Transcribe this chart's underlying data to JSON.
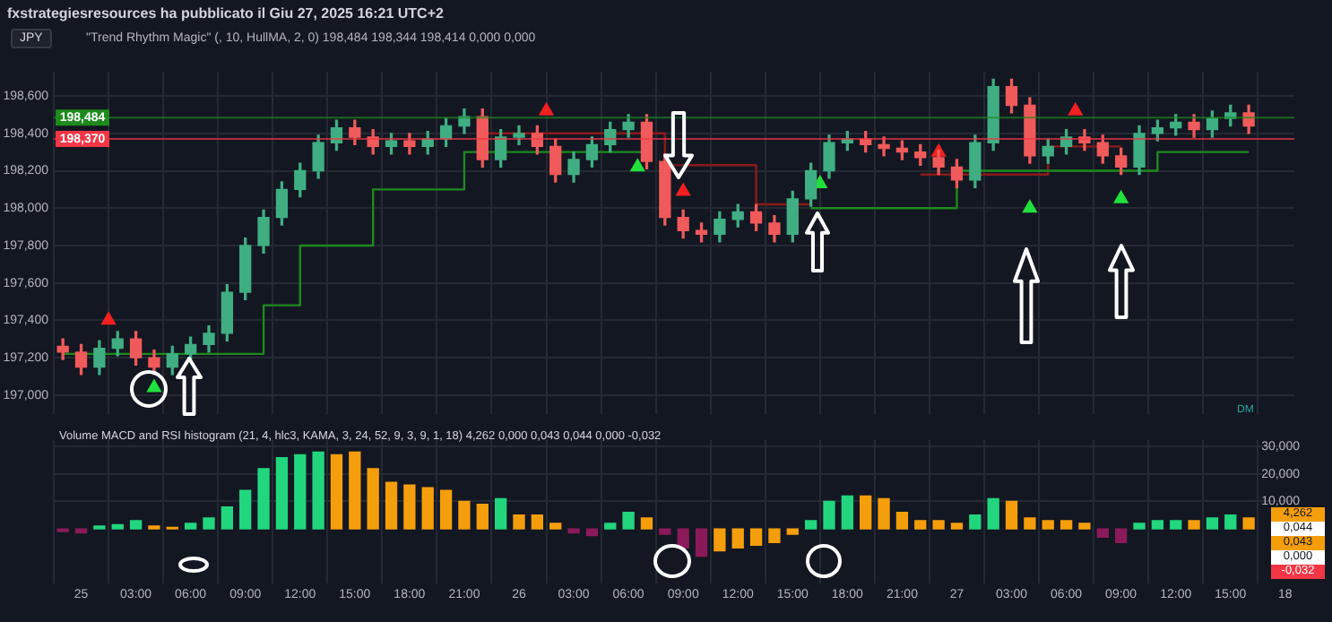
{
  "chart_data": [
    {
      "type": "candlestick",
      "title": "\"Trend Rhythm Magic\" (, 10, HullMA, 2, 0)  198,484  198,344  198,414  0,000  0,000",
      "x": [
        "2025-06-24T23:00",
        "2025-06-25T00:00",
        "2025-06-25T01:00",
        "2025-06-25T02:00",
        "2025-06-25T03:00",
        "2025-06-25T04:00",
        "2025-06-25T05:00",
        "2025-06-25T06:00",
        "2025-06-25T07:00",
        "2025-06-25T08:00",
        "2025-06-25T09:00",
        "2025-06-25T10:00",
        "2025-06-25T11:00",
        "2025-06-25T12:00",
        "2025-06-25T13:00",
        "2025-06-25T14:00",
        "2025-06-25T15:00",
        "2025-06-25T16:00",
        "2025-06-25T17:00",
        "2025-06-25T18:00",
        "2025-06-25T19:00",
        "2025-06-25T20:00",
        "2025-06-25T21:00",
        "2025-06-25T22:00",
        "2025-06-25T23:00",
        "2025-06-26T00:00",
        "2025-06-26T01:00",
        "2025-06-26T02:00",
        "2025-06-26T03:00",
        "2025-06-26T04:00",
        "2025-06-26T05:00",
        "2025-06-26T06:00",
        "2025-06-26T07:00",
        "2025-06-26T08:00",
        "2025-06-26T09:00",
        "2025-06-26T10:00",
        "2025-06-26T11:00",
        "2025-06-26T12:00",
        "2025-06-26T13:00",
        "2025-06-26T14:00",
        "2025-06-26T15:00",
        "2025-06-26T16:00",
        "2025-06-26T17:00",
        "2025-06-26T18:00",
        "2025-06-26T19:00",
        "2025-06-26T20:00",
        "2025-06-26T21:00",
        "2025-06-26T22:00",
        "2025-06-26T23:00",
        "2025-06-27T00:00",
        "2025-06-27T01:00",
        "2025-06-27T02:00",
        "2025-06-27T03:00",
        "2025-06-27T04:00",
        "2025-06-27T05:00",
        "2025-06-27T06:00",
        "2025-06-27T07:00",
        "2025-06-27T08:00",
        "2025-06-27T09:00",
        "2025-06-27T10:00",
        "2025-06-27T11:00",
        "2025-06-27T12:00",
        "2025-06-27T13:00",
        "2025-06-27T14:00",
        "2025-06-27T15:00",
        "2025-06-27T16:00"
      ],
      "ohlc": [
        [
          197.26,
          197.3,
          197.19,
          197.23
        ],
        [
          197.23,
          197.27,
          197.11,
          197.15
        ],
        [
          197.15,
          197.29,
          197.11,
          197.25
        ],
        [
          197.25,
          197.34,
          197.21,
          197.3
        ],
        [
          197.3,
          197.34,
          197.16,
          197.2
        ],
        [
          197.2,
          197.24,
          197.11,
          197.15
        ],
        [
          197.15,
          197.26,
          197.11,
          197.22
        ],
        [
          197.22,
          197.31,
          197.18,
          197.27
        ],
        [
          197.27,
          197.37,
          197.23,
          197.33
        ],
        [
          197.33,
          197.59,
          197.29,
          197.55
        ],
        [
          197.55,
          197.84,
          197.51,
          197.8
        ],
        [
          197.8,
          197.99,
          197.76,
          197.95
        ],
        [
          197.95,
          198.14,
          197.91,
          198.1
        ],
        [
          198.1,
          198.24,
          198.06,
          198.2
        ],
        [
          198.2,
          198.39,
          198.16,
          198.35
        ],
        [
          198.35,
          198.47,
          198.31,
          198.43
        ],
        [
          198.43,
          198.47,
          198.34,
          198.38
        ],
        [
          198.38,
          198.42,
          198.29,
          198.33
        ],
        [
          198.33,
          198.4,
          198.29,
          198.36
        ],
        [
          198.36,
          198.4,
          198.29,
          198.33
        ],
        [
          198.33,
          198.41,
          198.29,
          198.37
        ],
        [
          198.37,
          198.48,
          198.33,
          198.44
        ],
        [
          198.44,
          198.53,
          198.4,
          198.49
        ],
        [
          198.49,
          198.53,
          198.22,
          198.26
        ],
        [
          198.26,
          198.42,
          198.22,
          198.38
        ],
        [
          198.38,
          198.44,
          198.34,
          198.4
        ],
        [
          198.4,
          198.44,
          198.29,
          198.33
        ],
        [
          198.33,
          198.37,
          198.14,
          198.18
        ],
        [
          198.18,
          198.3,
          198.14,
          198.26
        ],
        [
          198.26,
          198.38,
          198.22,
          198.34
        ],
        [
          198.34,
          198.46,
          198.3,
          198.42
        ],
        [
          198.42,
          198.5,
          198.38,
          198.46
        ],
        [
          198.46,
          198.5,
          198.21,
          198.25
        ],
        [
          198.25,
          198.29,
          197.91,
          197.95
        ],
        [
          197.95,
          197.99,
          197.84,
          197.88
        ],
        [
          197.88,
          197.92,
          197.82,
          197.86
        ],
        [
          197.86,
          197.98,
          197.82,
          197.94
        ],
        [
          197.94,
          198.02,
          197.9,
          197.98
        ],
        [
          197.98,
          198.02,
          197.88,
          197.92
        ],
        [
          197.92,
          197.96,
          197.82,
          197.86
        ],
        [
          197.86,
          198.09,
          197.82,
          198.05
        ],
        [
          198.05,
          198.24,
          198.01,
          198.2
        ],
        [
          198.2,
          198.39,
          198.16,
          198.35
        ],
        [
          198.35,
          198.41,
          198.31,
          198.37
        ],
        [
          198.37,
          198.41,
          198.3,
          198.34
        ],
        [
          198.34,
          198.38,
          198.28,
          198.32
        ],
        [
          198.32,
          198.36,
          198.26,
          198.3
        ],
        [
          198.3,
          198.34,
          198.23,
          198.27
        ],
        [
          198.27,
          198.31,
          198.18,
          198.22
        ],
        [
          198.22,
          198.26,
          198.11,
          198.15
        ],
        [
          198.15,
          198.39,
          198.11,
          198.35
        ],
        [
          198.35,
          198.69,
          198.31,
          198.65
        ],
        [
          198.65,
          198.69,
          198.51,
          198.55
        ],
        [
          198.55,
          198.59,
          198.24,
          198.28
        ],
        [
          198.28,
          198.37,
          198.24,
          198.33
        ],
        [
          198.33,
          198.42,
          198.29,
          198.38
        ],
        [
          198.38,
          198.42,
          198.31,
          198.35
        ],
        [
          198.35,
          198.39,
          198.24,
          198.28
        ],
        [
          198.28,
          198.32,
          198.18,
          198.22
        ],
        [
          198.22,
          198.44,
          198.18,
          198.4
        ],
        [
          198.4,
          198.47,
          198.36,
          198.43
        ],
        [
          198.43,
          198.5,
          198.39,
          198.46
        ],
        [
          198.46,
          198.5,
          198.38,
          198.42
        ],
        [
          198.42,
          198.52,
          198.38,
          198.48
        ],
        [
          198.48,
          198.55,
          198.44,
          198.51
        ],
        [
          198.51,
          198.55,
          198.4,
          198.44
        ]
      ],
      "colors": [
        "#f05a5a",
        "#f05a5a",
        "#3fae82",
        "#3fae82",
        "#f05a5a",
        "#f05a5a",
        "#3fae82",
        "#3fae82",
        "#3fae82",
        "#3fae82",
        "#3fae82",
        "#3fae82",
        "#3fae82",
        "#3fae82",
        "#3fae82",
        "#3fae82",
        "#f05a5a",
        "#f05a5a",
        "#3fae82",
        "#f05a5a",
        "#3fae82",
        "#3fae82",
        "#3fae82",
        "#f05a5a",
        "#3fae82",
        "#3fae82",
        "#f05a5a",
        "#f05a5a",
        "#3fae82",
        "#3fae82",
        "#3fae82",
        "#3fae82",
        "#f05a5a",
        "#f05a5a",
        "#f05a5a",
        "#f05a5a",
        "#3fae82",
        "#3fae82",
        "#f05a5a",
        "#f05a5a",
        "#3fae82",
        "#3fae82",
        "#3fae82",
        "#3fae82",
        "#f05a5a",
        "#f05a5a",
        "#f05a5a",
        "#f05a5a",
        "#f05a5a",
        "#f05a5a",
        "#3fae82",
        "#3fae82",
        "#f05a5a",
        "#f05a5a",
        "#3fae82",
        "#3fae82",
        "#f05a5a",
        "#f05a5a",
        "#f05a5a",
        "#3fae82",
        "#3fae82",
        "#3fae82",
        "#f05a5a",
        "#3fae82",
        "#3fae82",
        "#f05a5a"
      ],
      "series": [
        {
          "type": "step",
          "color": "#1e8a1e",
          "values": [
            197.22,
            197.22,
            197.22,
            197.22,
            197.22,
            197.22,
            197.22,
            197.22,
            197.22,
            197.22,
            197.22,
            197.48,
            197.48,
            197.8,
            197.8,
            197.8,
            197.8,
            198.1,
            198.1,
            198.1,
            198.1,
            198.1,
            198.3,
            198.3,
            198.3,
            198.3,
            198.3,
            198.3,
            198.3,
            198.3,
            198.3,
            198.3,
            198.3,
            null,
            null,
            null,
            null,
            null,
            null,
            null,
            null,
            198.0,
            198.0,
            198.0,
            198.0,
            198.0,
            198.0,
            198.0,
            198.0,
            198.2,
            198.2,
            198.2,
            198.2,
            198.2,
            198.2,
            198.2,
            198.2,
            198.2,
            198.2,
            198.2,
            198.3,
            198.3,
            198.3,
            198.3,
            198.3,
            198.3
          ]
        },
        {
          "type": "step",
          "color": "#8b1a1a",
          "values": [
            null,
            null,
            null,
            null,
            null,
            null,
            null,
            null,
            null,
            null,
            null,
            null,
            null,
            null,
            null,
            null,
            null,
            null,
            null,
            null,
            null,
            null,
            null,
            198.4,
            198.4,
            198.4,
            198.4,
            198.4,
            198.4,
            198.4,
            198.4,
            198.4,
            198.4,
            198.23,
            198.23,
            198.23,
            198.23,
            198.23,
            198.02,
            198.02,
            198.02,
            198.02,
            null,
            null,
            null,
            null,
            null,
            198.18,
            198.18,
            198.18,
            198.18,
            198.18,
            198.18,
            198.18,
            198.33,
            198.33,
            198.33,
            198.33,
            198.33,
            null,
            null,
            null,
            null,
            null,
            null,
            null
          ]
        },
        {
          "type": "scatter",
          "marker": "triangle",
          "color": "#22e03c",
          "x": [
            "2025-06-25T04:00",
            "2025-06-26T06:30",
            "2025-06-26T16:30",
            "2025-06-27T04:00",
            "2025-06-27T09:00"
          ],
          "values": [
            197.04,
            198.22,
            198.13,
            198.0,
            198.05
          ]
        },
        {
          "type": "scatter",
          "marker": "triangle",
          "color": "#f22020",
          "x": [
            "2025-06-25T01:30",
            "2025-06-26T01:30",
            "2025-06-26T09:00",
            "2025-06-26T23:00",
            "2025-06-27T06:30"
          ],
          "values": [
            197.4,
            198.52,
            198.09,
            198.3,
            198.52
          ]
        }
      ],
      "xlim": [
        "2025-06-24T22:30",
        "2025-06-27T18:30"
      ],
      "xticks": [
        {
          "value": "2025-06-25T00:00",
          "label": null
        },
        {
          "value": "2025-06-25T03:00",
          "label": null
        },
        {
          "value": "2025-06-25T06:00",
          "label": null
        },
        {
          "value": "2025-06-25T09:00",
          "label": null
        },
        {
          "value": "2025-06-25T12:00",
          "label": null
        },
        {
          "value": "2025-06-25T15:00",
          "label": null
        },
        {
          "value": "2025-06-25T18:00",
          "label": null
        },
        {
          "value": "2025-06-25T21:00",
          "label": null
        },
        {
          "value": "2025-06-26T00:00",
          "label": null
        },
        {
          "value": "2025-06-26T03:00",
          "label": null
        },
        {
          "value": "2025-06-26T06:00",
          "label": null
        },
        {
          "value": "2025-06-26T09:00",
          "label": null
        },
        {
          "value": "2025-06-26T12:00",
          "label": null
        },
        {
          "value": "2025-06-26T15:00",
          "label": null
        },
        {
          "value": "2025-06-26T18:00",
          "label": null
        },
        {
          "value": "2025-06-26T21:00",
          "label": null
        },
        {
          "value": "2025-06-27T00:00",
          "label": null
        },
        {
          "value": "2025-06-27T03:00",
          "label": null
        },
        {
          "value": "2025-06-27T06:00",
          "label": null
        },
        {
          "value": "2025-06-27T09:00",
          "label": null
        },
        {
          "value": "2025-06-27T12:00",
          "label": null
        },
        {
          "value": "2025-06-27T15:00",
          "label": null
        },
        {
          "value": "2025-06-27T18:00",
          "label": null
        }
      ],
      "ylim": [
        196.9,
        198.73
      ],
      "yticks": [
        {
          "value": 197.0,
          "label": "197,000"
        },
        {
          "value": 197.2,
          "label": "197,200"
        },
        {
          "value": 197.4,
          "label": "197,400"
        },
        {
          "value": 197.6,
          "label": "197,600"
        },
        {
          "value": 197.8,
          "label": "197,800"
        },
        {
          "value": 198.0,
          "label": "198,000"
        },
        {
          "value": 198.2,
          "label": "198,200"
        },
        {
          "value": 198.4,
          "label": "198,400"
        },
        {
          "value": 198.6,
          "label": "198,600"
        }
      ],
      "tick_labels": "y",
      "grid": true,
      "ref_lines": [
        {
          "axis": "y",
          "value": 198.484,
          "label": "198,484",
          "color": "#1e8a1e"
        },
        {
          "axis": "y",
          "value": 198.37,
          "label": "198,370",
          "color": "#f23645"
        }
      ],
      "annotations": [
        "fxstrategiesresources ha pubblicato il Giu 27, 2025 16:21 UTC+2",
        "JPY",
        "DM"
      ]
    },
    {
      "type": "bar",
      "title": "Volume MACD and RSI histogram (21, 4, hlc3, KAMA, 3, 24, 52, 9, 3, 9, 1, 18)  4,262  0,000  0,043  0,044  0,000  -0,032",
      "x": [
        "2025-06-24T23:00",
        "2025-06-25T00:00",
        "2025-06-25T01:00",
        "2025-06-25T02:00",
        "2025-06-25T03:00",
        "2025-06-25T04:00",
        "2025-06-25T05:00",
        "2025-06-25T06:00",
        "2025-06-25T07:00",
        "2025-06-25T08:00",
        "2025-06-25T09:00",
        "2025-06-25T10:00",
        "2025-06-25T11:00",
        "2025-06-25T12:00",
        "2025-06-25T13:00",
        "2025-06-25T14:00",
        "2025-06-25T15:00",
        "2025-06-25T16:00",
        "2025-06-25T17:00",
        "2025-06-25T18:00",
        "2025-06-25T19:00",
        "2025-06-25T20:00",
        "2025-06-25T21:00",
        "2025-06-25T22:00",
        "2025-06-25T23:00",
        "2025-06-26T00:00",
        "2025-06-26T01:00",
        "2025-06-26T02:00",
        "2025-06-26T03:00",
        "2025-06-26T04:00",
        "2025-06-26T05:00",
        "2025-06-26T06:00",
        "2025-06-26T07:00",
        "2025-06-26T08:00",
        "2025-06-26T09:00",
        "2025-06-26T10:00",
        "2025-06-26T11:00",
        "2025-06-26T12:00",
        "2025-06-26T13:00",
        "2025-06-26T14:00",
        "2025-06-26T15:00",
        "2025-06-26T16:00",
        "2025-06-26T17:00",
        "2025-06-26T18:00",
        "2025-06-26T19:00",
        "2025-06-26T20:00",
        "2025-06-26T21:00",
        "2025-06-26T22:00",
        "2025-06-26T23:00",
        "2025-06-27T00:00",
        "2025-06-27T01:00",
        "2025-06-27T02:00",
        "2025-06-27T03:00",
        "2025-06-27T04:00",
        "2025-06-27T05:00",
        "2025-06-27T06:00",
        "2025-06-27T07:00",
        "2025-06-27T08:00",
        "2025-06-27T09:00",
        "2025-06-27T10:00",
        "2025-06-27T11:00",
        "2025-06-27T12:00",
        "2025-06-27T13:00",
        "2025-06-27T14:00",
        "2025-06-27T15:00",
        "2025-06-27T16:00"
      ],
      "values": [
        -1,
        -1.5,
        1,
        1.5,
        3,
        1,
        0.5,
        2,
        4,
        8,
        14,
        22,
        26,
        27,
        28,
        27,
        28,
        22,
        17,
        16,
        15,
        14,
        10,
        9,
        11,
        5,
        5,
        2,
        -1.5,
        -2.5,
        2,
        6,
        4,
        -2,
        -7,
        -10,
        -8,
        -7,
        -6,
        -5,
        -2,
        3,
        10,
        12,
        12,
        11,
        6,
        3,
        3,
        2,
        5,
        11,
        10,
        4,
        3,
        3,
        2,
        -3,
        -5,
        2,
        3,
        3,
        3,
        4,
        5,
        4
      ],
      "colors": [
        "#8b1a5a",
        "#8b1a5a",
        "#22d67e",
        "#22d67e",
        "#22d67e",
        "#f59e0b",
        "#f59e0b",
        "#22d67e",
        "#22d67e",
        "#22d67e",
        "#22d67e",
        "#22d67e",
        "#22d67e",
        "#22d67e",
        "#22d67e",
        "#f59e0b",
        "#f59e0b",
        "#f59e0b",
        "#f59e0b",
        "#f59e0b",
        "#f59e0b",
        "#f59e0b",
        "#f59e0b",
        "#f59e0b",
        "#22d67e",
        "#f59e0b",
        "#f59e0b",
        "#f59e0b",
        "#8b1a5a",
        "#8b1a5a",
        "#22d67e",
        "#22d67e",
        "#f59e0b",
        "#8b1a5a",
        "#8b1a5a",
        "#8b1a5a",
        "#f59e0b",
        "#f59e0b",
        "#f59e0b",
        "#f59e0b",
        "#f59e0b",
        "#22d67e",
        "#22d67e",
        "#22d67e",
        "#f59e0b",
        "#f59e0b",
        "#f59e0b",
        "#f59e0b",
        "#f59e0b",
        "#f59e0b",
        "#22d67e",
        "#22d67e",
        "#f59e0b",
        "#f59e0b",
        "#f59e0b",
        "#f59e0b",
        "#f59e0b",
        "#8b1a5a",
        "#8b1a5a",
        "#22d67e",
        "#22d67e",
        "#22d67e",
        "#f59e0b",
        "#22d67e",
        "#22d67e",
        "#f59e0b"
      ],
      "xlim": [
        "2025-06-24T22:30",
        "2025-06-27T18:30"
      ],
      "xticks": [
        {
          "value": "2025-06-25T00:00",
          "label": "25"
        },
        {
          "value": "2025-06-25T03:00",
          "label": "03:00"
        },
        {
          "value": "2025-06-25T06:00",
          "label": "06:00"
        },
        {
          "value": "2025-06-25T09:00",
          "label": "09:00"
        },
        {
          "value": "2025-06-25T12:00",
          "label": "12:00"
        },
        {
          "value": "2025-06-25T15:00",
          "label": "15:00"
        },
        {
          "value": "2025-06-25T18:00",
          "label": "18:00"
        },
        {
          "value": "2025-06-25T21:00",
          "label": "21:00"
        },
        {
          "value": "2025-06-26T00:00",
          "label": "26"
        },
        {
          "value": "2025-06-26T03:00",
          "label": "03:00"
        },
        {
          "value": "2025-06-26T06:00",
          "label": "06:00"
        },
        {
          "value": "2025-06-26T09:00",
          "label": "09:00"
        },
        {
          "value": "2025-06-26T12:00",
          "label": "12:00"
        },
        {
          "value": "2025-06-26T15:00",
          "label": "15:00"
        },
        {
          "value": "2025-06-26T18:00",
          "label": "18:00"
        },
        {
          "value": "2025-06-26T21:00",
          "label": "21:00"
        },
        {
          "value": "2025-06-27T00:00",
          "label": "27"
        },
        {
          "value": "2025-06-27T03:00",
          "label": "03:00"
        },
        {
          "value": "2025-06-27T06:00",
          "label": "06:00"
        },
        {
          "value": "2025-06-27T09:00",
          "label": "09:00"
        },
        {
          "value": "2025-06-27T12:00",
          "label": "12:00"
        },
        {
          "value": "2025-06-27T15:00",
          "label": "15:00"
        },
        {
          "value": "2025-06-27T18:00",
          "label": "18"
        }
      ],
      "ylim": [
        -20,
        32.6
      ],
      "yticks": [
        {
          "value": 10,
          "label": "10,000"
        },
        {
          "value": 20,
          "label": "20,000"
        },
        {
          "value": 30,
          "label": "30,000"
        }
      ],
      "grid": true,
      "annotations": [
        "4,262",
        "0,044",
        "0,043",
        "0,000",
        "-0,032"
      ]
    }
  ]
}
